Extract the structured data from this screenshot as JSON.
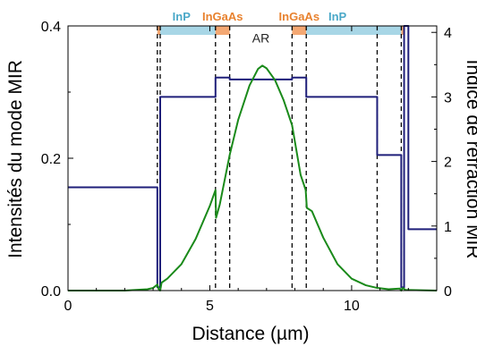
{
  "chart_data": {
    "type": "line",
    "xlabel": "Distance (µm)",
    "ylabel_left": "Intensités du mode MIR",
    "ylabel_right": "Indice de réfraction MIR",
    "xlim": [
      0,
      13
    ],
    "ylim_left": [
      0,
      0.4
    ],
    "ylim_right": [
      0,
      4.1
    ],
    "xticks": [
      0,
      5,
      10
    ],
    "xtick_labels": [
      "0",
      "5",
      "10"
    ],
    "yticks_left": [
      0.0,
      0.2,
      0.4
    ],
    "ytick_labels_left": [
      "0.0",
      "0.2",
      "0.4"
    ],
    "yticks_right": [
      0,
      1,
      2,
      3,
      4
    ],
    "ytick_labels_right": [
      "0",
      "1",
      "2",
      "3",
      "4"
    ],
    "grid": false,
    "series": [
      {
        "axis": "right",
        "color": "#1f1f7a",
        "style": "step",
        "x": [
          0,
          3.15,
          3.15,
          3.25,
          3.25,
          5.2,
          5.2,
          5.7,
          5.7,
          7.9,
          7.9,
          8.4,
          8.4,
          10.9,
          10.9,
          11.75,
          11.75,
          11.85,
          11.85,
          12.0,
          12.0,
          13.0
        ],
        "y": [
          1.6,
          1.6,
          0.05,
          0.05,
          3.0,
          3.0,
          3.3,
          3.3,
          3.27,
          3.27,
          3.3,
          3.3,
          3.0,
          3.0,
          2.1,
          2.1,
          0.05,
          0.05,
          4.1,
          4.1,
          0.95,
          0.95
        ]
      },
      {
        "axis": "left",
        "color": "#1a8a1a",
        "style": "line",
        "x": [
          0,
          2.0,
          2.8,
          3.0,
          3.15,
          3.2,
          3.25,
          3.3,
          3.5,
          4.0,
          4.5,
          5.0,
          5.2,
          5.22,
          5.35,
          5.7,
          6.0,
          6.4,
          6.7,
          6.85,
          7.0,
          7.3,
          7.6,
          7.9,
          8.2,
          8.38,
          8.42,
          8.6,
          9.0,
          9.5,
          10.0,
          10.5,
          10.9,
          11.3,
          11.7,
          11.75,
          11.8,
          11.9,
          13.0
        ],
        "y": [
          0,
          0,
          0.002,
          0.004,
          0.009,
          0.002,
          0.0,
          0.012,
          0.018,
          0.04,
          0.078,
          0.128,
          0.152,
          0.11,
          0.13,
          0.205,
          0.258,
          0.31,
          0.335,
          0.34,
          0.336,
          0.318,
          0.288,
          0.25,
          0.175,
          0.152,
          0.125,
          0.12,
          0.08,
          0.04,
          0.018,
          0.008,
          0.004,
          0.002,
          0.003,
          0.0,
          0.004,
          0.001,
          0.0
        ]
      }
    ],
    "vlines": [
      3.15,
      3.25,
      5.2,
      5.7,
      7.9,
      8.4,
      10.9,
      11.75,
      11.85
    ],
    "layers": [
      {
        "x0": 3.15,
        "x1": 3.25,
        "color": "#f4a873"
      },
      {
        "x0": 3.25,
        "x1": 5.2,
        "color": "#a8d6e6"
      },
      {
        "x0": 5.2,
        "x1": 5.7,
        "color": "#f4a873"
      },
      {
        "x0": 7.9,
        "x1": 8.4,
        "color": "#f4a873"
      },
      {
        "x0": 8.4,
        "x1": 11.75,
        "color": "#a8d6e6"
      },
      {
        "x0": 11.75,
        "x1": 11.85,
        "color": "#f4a873"
      }
    ],
    "annotations": [
      {
        "text": "InP",
        "x": 4.0,
        "color": "#4aa8c8",
        "position": "above"
      },
      {
        "text": "InGaAs",
        "x": 5.45,
        "color": "#e8822f",
        "position": "above"
      },
      {
        "text": "InGaAs",
        "x": 8.15,
        "color": "#e8822f",
        "position": "above"
      },
      {
        "text": "InP",
        "x": 9.5,
        "color": "#4aa8c8",
        "position": "above"
      },
      {
        "text": "AR",
        "x": 6.8,
        "y": 0.375,
        "color": "#222222",
        "position": "inside"
      }
    ]
  }
}
